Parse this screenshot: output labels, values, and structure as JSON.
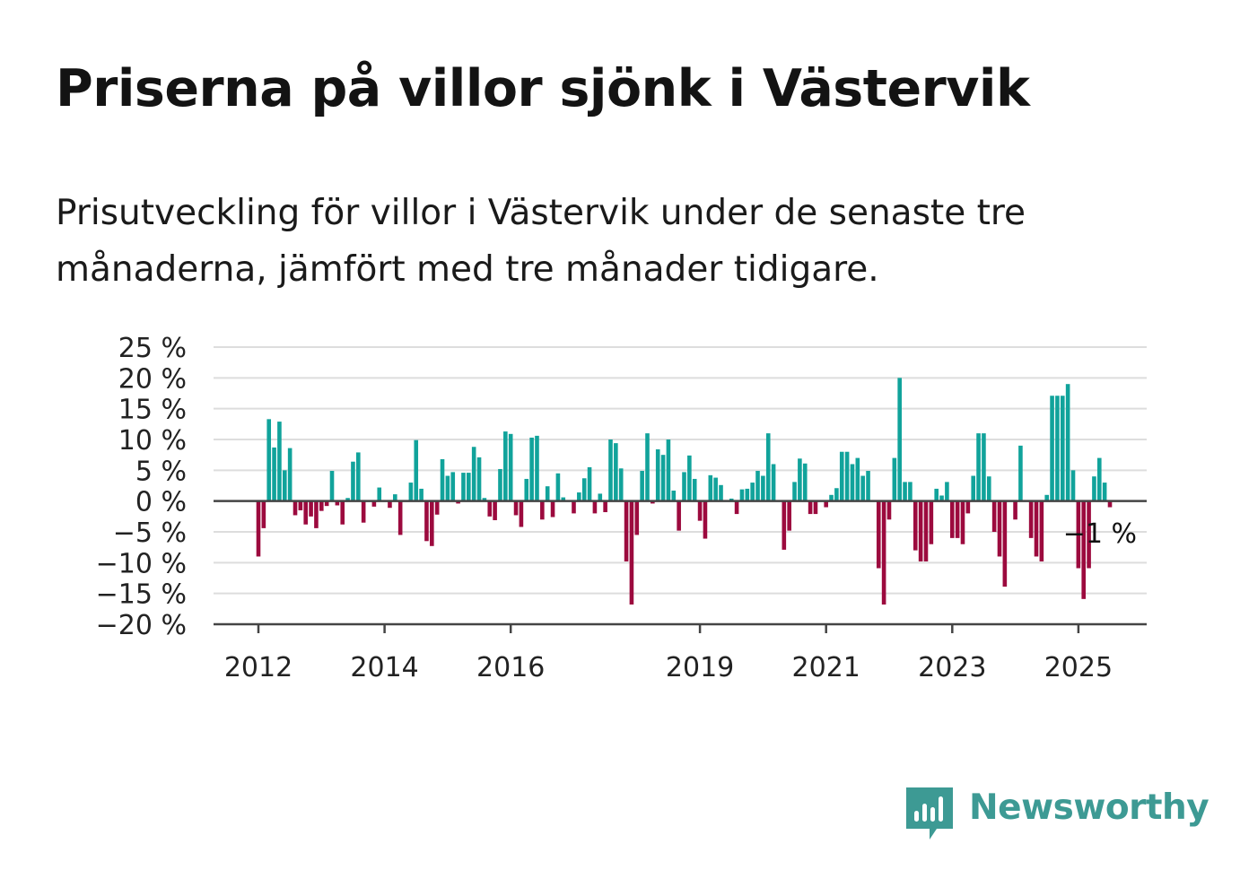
{
  "title": "Priserna på villor sjönk i Västervik",
  "subtitle": "Prisutveckling för villor i Västervik under de senaste tre månaderna, jämfört med tre månader tidigare.",
  "brand": {
    "name": "Newsworthy",
    "color": "#3d9a94",
    "icon": "bar-chart-speech-bubble-icon"
  },
  "colors": {
    "positive": "#11a39b",
    "negative": "#9c0a3e",
    "grid": "#dddddd",
    "axis": "#444444"
  },
  "chart_data": {
    "type": "bar",
    "title": "",
    "xlabel": "",
    "ylabel": "",
    "ylim": [
      -20,
      25
    ],
    "yticks": [
      25,
      20,
      15,
      10,
      5,
      0,
      -5,
      -10,
      -15,
      -20
    ],
    "ytick_labels": [
      "25 %",
      "20 %",
      "15 %",
      "10 %",
      "5 %",
      "0 %",
      "−5 %",
      "−10 %",
      "−15 %",
      "−20 %"
    ],
    "xticks": [
      {
        "label": "2012",
        "x": 2012.0
      },
      {
        "label": "2014",
        "x": 2014.0
      },
      {
        "label": "2016",
        "x": 2016.0
      },
      {
        "label": "2019",
        "x": 2019.0
      },
      {
        "label": "2021",
        "x": 2021.0
      },
      {
        "label": "2023",
        "x": 2023.0
      },
      {
        "label": "2025",
        "x": 2025.0
      }
    ],
    "x_start": 2012.0,
    "x_step": 0.08333,
    "grid": true,
    "legend": "none",
    "annotation": {
      "text": "−1 %",
      "value": -1
    },
    "values": [
      -9,
      -4.4,
      13.3,
      8.7,
      12.9,
      5,
      8.6,
      -2.3,
      -1.5,
      -3.8,
      -2.5,
      -4.4,
      -1.6,
      -0.8,
      4.9,
      -0.7,
      -3.8,
      0.5,
      6.4,
      7.9,
      -3.5,
      -0.1,
      -0.9,
      2.2,
      0,
      -1.1,
      1.1,
      -5.5,
      0,
      3,
      9.9,
      2,
      -6.5,
      -7.3,
      -2.2,
      6.8,
      4.1,
      4.7,
      -0.4,
      4.6,
      4.6,
      8.8,
      7.1,
      0.5,
      -2.5,
      -3.1,
      5.2,
      11.3,
      10.9,
      -2.3,
      -4.2,
      3.6,
      10.3,
      10.6,
      -3,
      2.4,
      -2.6,
      4.5,
      0.6,
      0,
      -2,
      1.4,
      3.7,
      5.5,
      -2,
      1.2,
      -1.8,
      10,
      9.4,
      5.3,
      -9.8,
      -16.8,
      -5.5,
      4.9,
      11,
      -0.4,
      8.4,
      7.5,
      10,
      1.7,
      -4.8,
      4.7,
      7.4,
      3.6,
      -3.2,
      -6.1,
      4.2,
      3.8,
      2.6,
      0,
      0.4,
      -2.1,
      1.9,
      2,
      3,
      4.9,
      4.1,
      11,
      6,
      0,
      -7.9,
      -4.8,
      3.1,
      6.9,
      6.1,
      -2.1,
      -2.1,
      0,
      -1,
      1,
      2.1,
      8,
      8,
      6,
      7,
      4.1,
      4.9,
      0,
      -10.9,
      -16.8,
      -3,
      7,
      20,
      3.1,
      3.1,
      -8,
      -9.8,
      -9.8,
      -7,
      2,
      0.9,
      3.1,
      -6,
      -6,
      -7,
      -2,
      4.1,
      11,
      11,
      4,
      -5,
      -9,
      -13.9,
      0,
      -3,
      9,
      0,
      -6,
      -9,
      -9.8,
      1,
      17.1,
      17.1,
      17.1,
      19,
      5,
      -10.9,
      -15.9,
      -10.9,
      4,
      7,
      3,
      -1
    ]
  }
}
